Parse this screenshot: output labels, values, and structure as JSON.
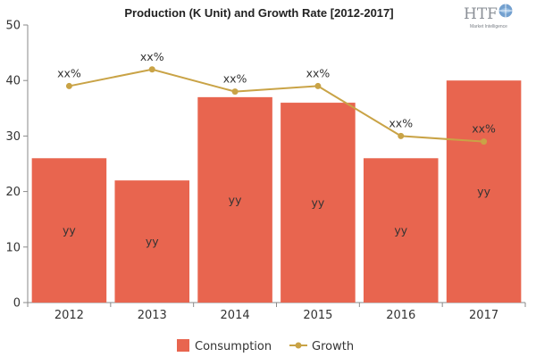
{
  "chart_data": {
    "type": "bar",
    "title": "Production (K Unit) and Growth Rate [2012-2017]",
    "categories": [
      "2012",
      "2013",
      "2014",
      "2015",
      "2016",
      "2017"
    ],
    "series": [
      {
        "name": "Consumption",
        "type": "bar",
        "values": [
          26,
          22,
          37,
          36,
          26,
          40
        ],
        "data_labels": [
          "yy",
          "yy",
          "yy",
          "yy",
          "yy",
          "yy"
        ],
        "color": "#e8654f"
      },
      {
        "name": "Growth",
        "type": "line",
        "values": [
          39,
          42,
          38,
          39,
          30,
          29
        ],
        "data_labels": [
          "xx%",
          "xx%",
          "xx%",
          "xx%",
          "xx%",
          "xx%"
        ],
        "color": "#c9a346"
      }
    ],
    "yticks": [
      0,
      10,
      20,
      30,
      40,
      50
    ],
    "ylim": [
      0,
      50
    ],
    "xlabel": "",
    "ylabel": "",
    "grid": false,
    "legend_position": "bottom"
  },
  "logo": {
    "text": "HTF",
    "subtext": "Market Intelligence"
  }
}
